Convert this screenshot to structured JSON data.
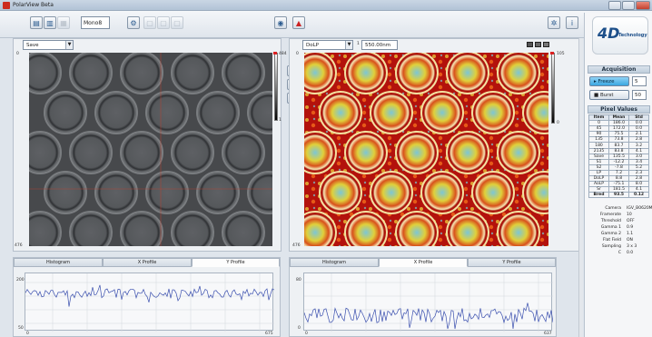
{
  "window": {
    "title": "PolarView Beta"
  },
  "toolbar": {
    "mode": "Mono8"
  },
  "left_panel": {
    "dropdown": "Save",
    "colorbar_max": "484",
    "colorbar_min": "1",
    "y_top": "0",
    "y_bottom": "476",
    "tabs": [
      "Histogram",
      "X Profile",
      "Y Profile"
    ],
    "active_tab": 2,
    "profile": {
      "y_max": "200",
      "y_min": "50",
      "x_min": "0",
      "x_max": "675"
    }
  },
  "right_panel": {
    "dropdown": "DoLP",
    "range_label": "1",
    "range_value": "550.00nm",
    "colorbar_max": "105",
    "colorbar_min": "0",
    "y_top": "0",
    "y_bottom": "476",
    "tabs": [
      "Histogram",
      "X Profile",
      "Y Profile"
    ],
    "active_tab": 1,
    "profile": {
      "y_max": "80",
      "y_min": "0",
      "x_min": "0",
      "x_max": "637"
    }
  },
  "sidebar": {
    "logo_main": "4D",
    "logo_sub": "Technology",
    "acquisition": {
      "title": "Acquisition",
      "freeze_label": "Freeze",
      "freeze_count": "5",
      "burst_label": "Burst",
      "burst_count": "50"
    },
    "pixel_values": {
      "title": "Pixel Values",
      "headers": [
        "Item",
        "Mean",
        "Std"
      ],
      "rows": [
        [
          "0",
          "186.0",
          "0.0"
        ],
        [
          "45",
          "172.0",
          "0.0"
        ],
        [
          "90",
          "75.5",
          "2.1"
        ],
        [
          "135",
          "73.8",
          "2.8"
        ],
        [
          "180",
          "83.7",
          "3.2"
        ],
        [
          "2135",
          "83.8",
          "4.1"
        ],
        [
          "Save",
          "135.5",
          "3.0"
        ],
        [
          "S1",
          "-12.2",
          "3.4"
        ],
        [
          "S2",
          "-7.8",
          "5.2"
        ],
        [
          "LP",
          "7.2",
          "2.3"
        ],
        [
          "DoLP",
          "8.8",
          "2.8"
        ],
        [
          "AoLP",
          "-75.1",
          "8.0"
        ],
        [
          "Sr",
          "181.5",
          "4.1"
        ],
        [
          "Bred",
          "93.5",
          "0.12"
        ]
      ]
    },
    "config": [
      [
        "Camera",
        "IGV_B0620M"
      ],
      [
        "Framerate",
        "10"
      ],
      [
        "Threshold",
        "OFF"
      ],
      [
        "Gamma 1",
        "0.9"
      ],
      [
        "Gamma 2",
        "1.1"
      ],
      [
        "Flat Field",
        "ON"
      ],
      [
        "Sampling",
        "3 x 3"
      ],
      [
        "C",
        "0.0"
      ]
    ]
  }
}
